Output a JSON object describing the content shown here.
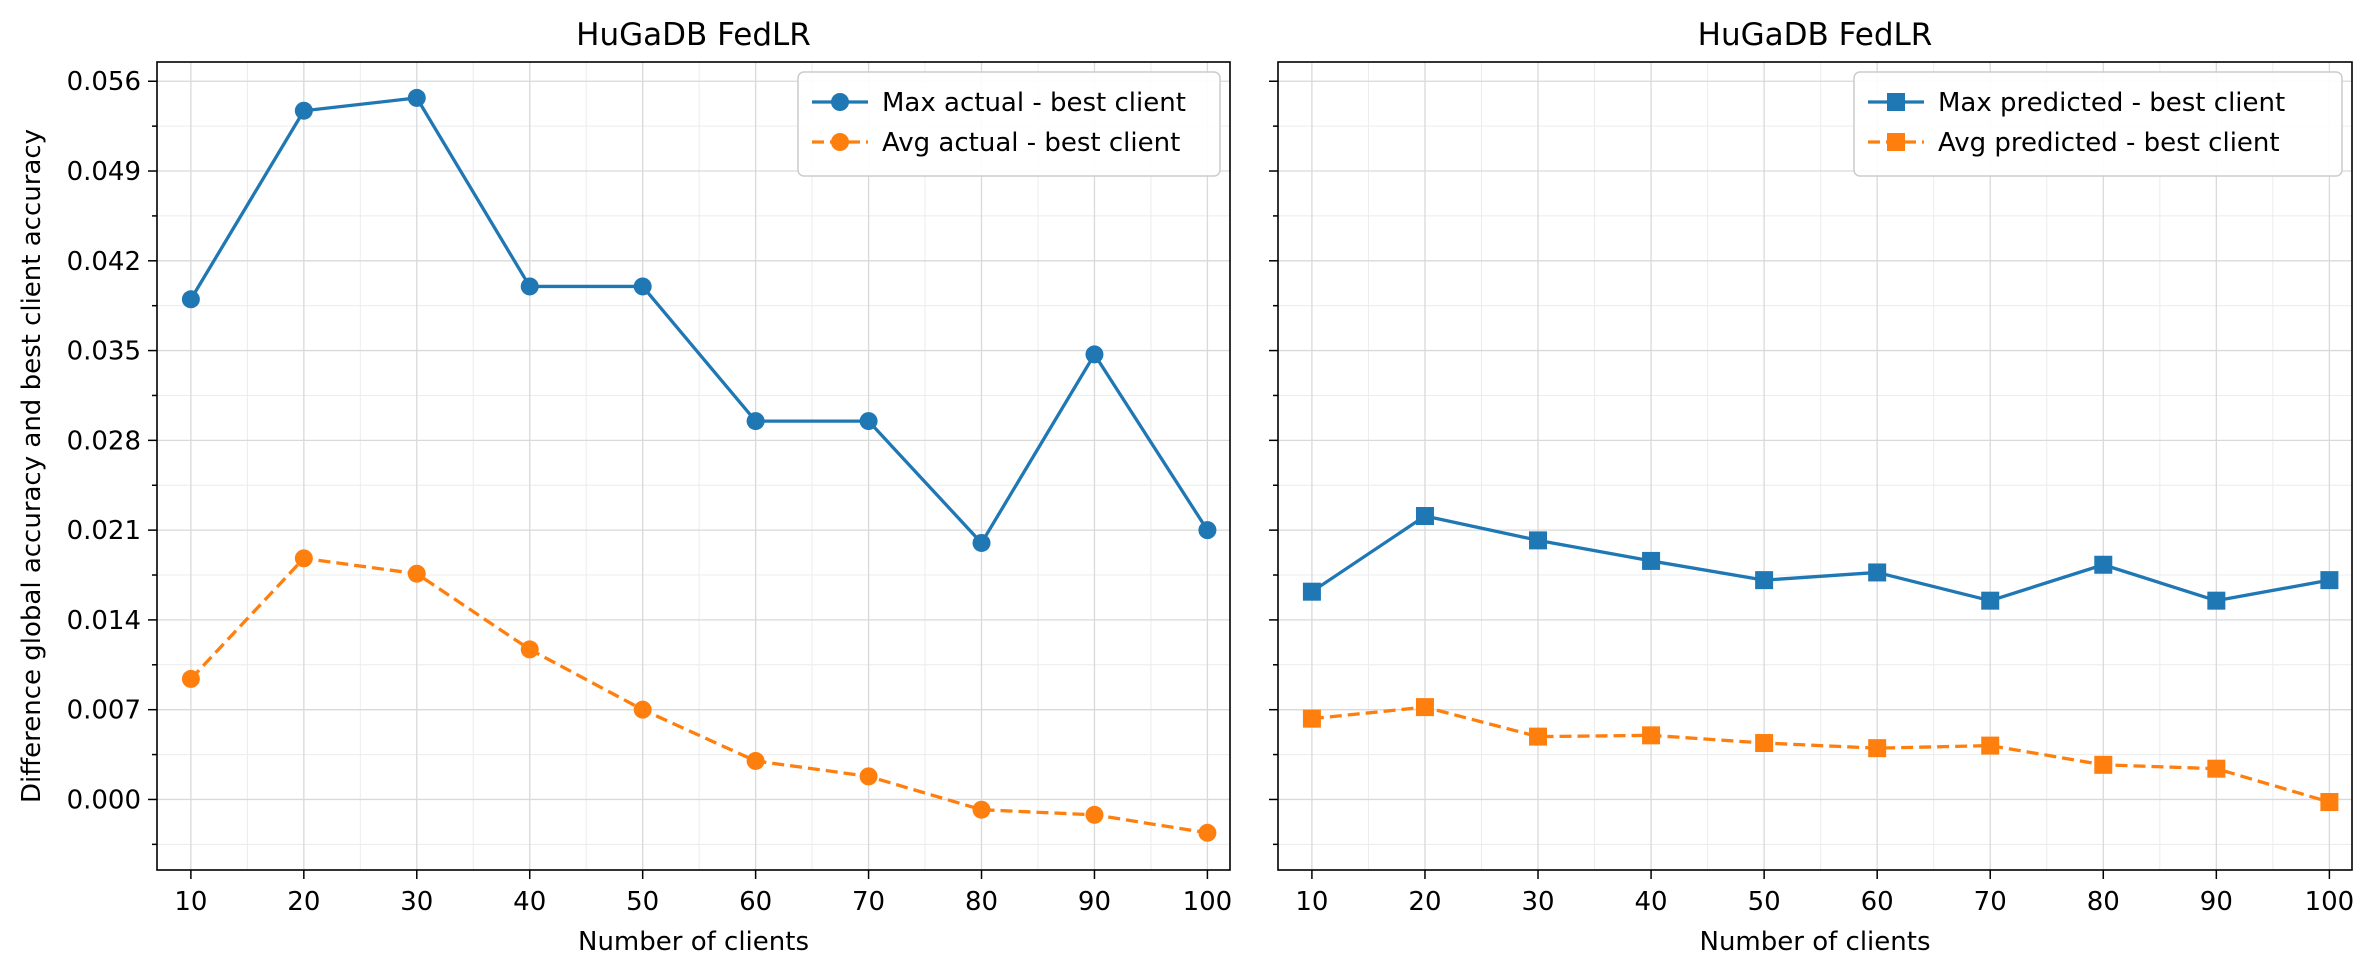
{
  "chart_data": [
    {
      "type": "line",
      "title": "HuGaDB FedLR",
      "xlabel": "Number of clients",
      "ylabel": "Difference global accuracy and best client accuracy",
      "x": [
        10,
        20,
        30,
        40,
        50,
        60,
        70,
        80,
        90,
        100
      ],
      "xlim": [
        7,
        102
      ],
      "ylim": [
        -0.0055,
        0.0575
      ],
      "yticks": [
        "0.000",
        "0.007",
        "0.014",
        "0.021",
        "0.028",
        "0.035",
        "0.042",
        "0.049",
        "0.056"
      ],
      "grid": true,
      "legend_position": "top-right",
      "series": [
        {
          "name": "Max actual - best client",
          "color": "#1f77b4",
          "marker": "circle",
          "linestyle": "solid",
          "values": [
            0.039,
            0.0537,
            0.0547,
            0.04,
            0.04,
            0.0295,
            0.0295,
            0.02,
            0.0347,
            0.021
          ]
        },
        {
          "name": "Avg actual - best client",
          "color": "#ff7f0e",
          "marker": "circle",
          "linestyle": "dashed",
          "values": [
            0.0094,
            0.0188,
            0.0176,
            0.0117,
            0.007,
            0.003,
            0.0018,
            -0.0008,
            -0.0012,
            -0.0026
          ]
        }
      ]
    },
    {
      "type": "line",
      "title": "HuGaDB FedLR",
      "xlabel": "Number of clients",
      "ylabel": "",
      "x": [
        10,
        20,
        30,
        40,
        50,
        60,
        70,
        80,
        90,
        100
      ],
      "xlim": [
        7,
        102
      ],
      "ylim": [
        -0.0055,
        0.0575
      ],
      "grid": true,
      "legend_position": "top-right",
      "series": [
        {
          "name": "Max predicted - best client",
          "color": "#1f77b4",
          "marker": "square",
          "linestyle": "solid",
          "values": [
            0.0162,
            0.0221,
            0.0202,
            0.0186,
            0.0171,
            0.0177,
            0.0155,
            0.0183,
            0.0155,
            0.0171
          ]
        },
        {
          "name": "Avg predicted - best client",
          "color": "#ff7f0e",
          "marker": "square",
          "linestyle": "dashed",
          "values": [
            0.0063,
            0.0072,
            0.0049,
            0.005,
            0.0044,
            0.004,
            0.0042,
            0.0027,
            0.0024,
            -0.0002
          ]
        }
      ]
    }
  ]
}
